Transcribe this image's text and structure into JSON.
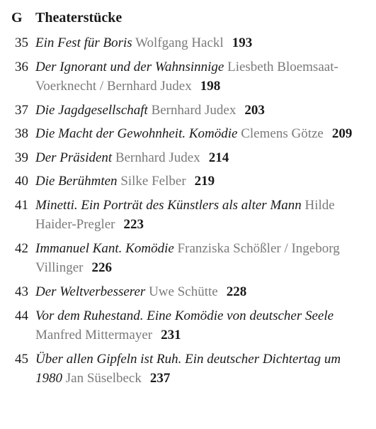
{
  "section": {
    "letter": "G",
    "title": "Theaterstücke"
  },
  "entries": [
    {
      "num": "35",
      "title": "Ein Fest für Boris",
      "author": "Wolfgang Hackl",
      "page": "193"
    },
    {
      "num": "36",
      "title": "Der Ignorant und der Wahnsinnige",
      "author": "Liesbeth Bloemsaat-Voerknecht / Bernhard Judex",
      "page": "198"
    },
    {
      "num": "37",
      "title": "Die Jagdgesellschaft",
      "author": "Bernhard Judex",
      "page": "203"
    },
    {
      "num": "38",
      "title": "Die Macht der Gewohnheit. Komödie",
      "author": "Clemens Götze",
      "page": "209"
    },
    {
      "num": "39",
      "title": "Der Präsident",
      "author": "Bernhard Judex",
      "page": "214"
    },
    {
      "num": "40",
      "title": "Die Berühmten",
      "author": "Silke Felber",
      "page": "219"
    },
    {
      "num": "41",
      "title": "Minetti. Ein Porträt des Künstlers als alter Mann",
      "author": "Hilde Haider-Pregler",
      "page": "223"
    },
    {
      "num": "42",
      "title": "Immanuel Kant. Komödie",
      "author": "Franziska Schößler / Ingeborg Villinger",
      "page": "226"
    },
    {
      "num": "43",
      "title": "Der Weltverbesserer",
      "author": "Uwe Schütte",
      "page": "228"
    },
    {
      "num": "44",
      "title": "Vor dem Ruhestand. Eine Komödie von deutscher Seele",
      "author": "Manfred Mittermayer",
      "page": "231"
    },
    {
      "num": "45",
      "title": "Über allen Gipfeln ist Ruh. Ein deutscher Dichtertag um 1980",
      "author": "Jan Süselbeck",
      "page": "237"
    }
  ]
}
